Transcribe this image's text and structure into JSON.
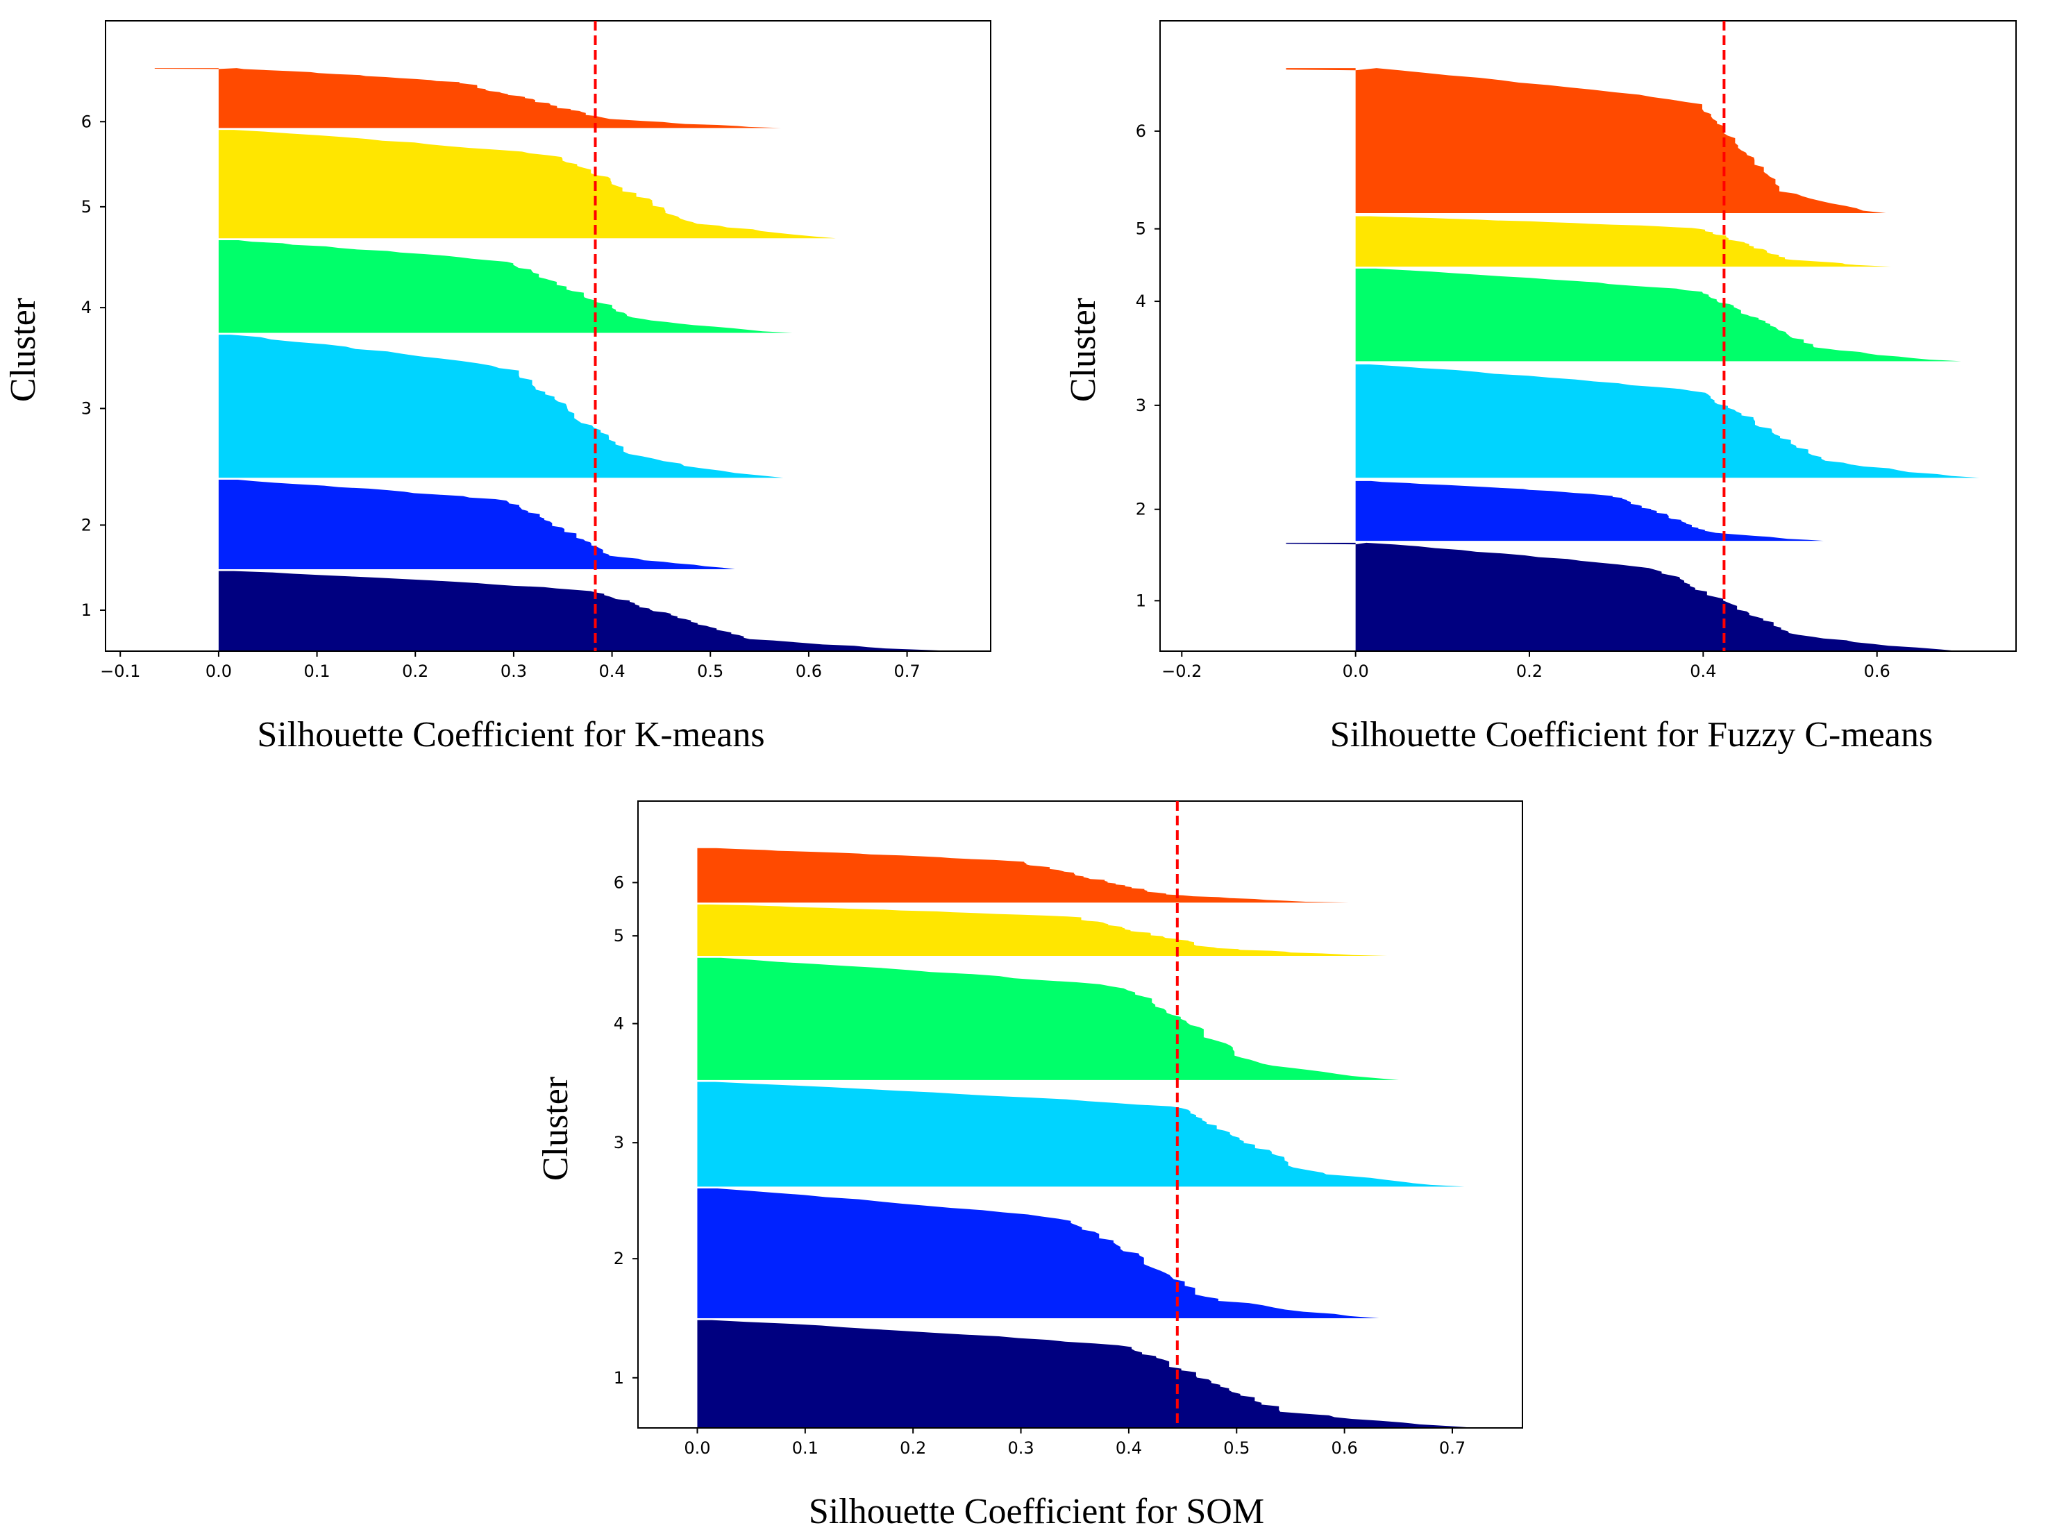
{
  "chart_data": [
    {
      "type": "silhouette",
      "xlabel": "Silhouette Coefficient for K-means",
      "ylabel": "Cluster",
      "xlim": [
        -0.115,
        0.785
      ],
      "xticks": [
        -0.1,
        0.0,
        0.1,
        0.2,
        0.3,
        0.4,
        0.5,
        0.6,
        0.7
      ],
      "xtick_labels": [
        "−0.1",
        "0.0",
        "0.1",
        "0.2",
        "0.3",
        "0.4",
        "0.5",
        "0.6",
        "0.7"
      ],
      "average_silhouette": 0.383,
      "clusters": [
        {
          "label": "1",
          "color": "#000080",
          "start": 0.0,
          "end": 0.127,
          "max": 0.745,
          "min": 0.0,
          "median": 0.38
        },
        {
          "label": "2",
          "color": "#0022ff",
          "start": 0.13,
          "end": 0.272,
          "max": 0.53,
          "min": 0.0,
          "median": 0.3
        },
        {
          "label": "3",
          "color": "#00d4ff",
          "start": 0.275,
          "end": 0.502,
          "max": 0.575,
          "min": 0.0,
          "median": 0.3
        },
        {
          "label": "4",
          "color": "#00ff6a",
          "start": 0.505,
          "end": 0.652,
          "max": 0.58,
          "min": 0.0,
          "median": 0.3
        },
        {
          "label": "5",
          "color": "#ffe600",
          "start": 0.655,
          "end": 0.827,
          "max": 0.635,
          "min": 0.0,
          "median": 0.35
        },
        {
          "label": "6",
          "color": "#ff4a00",
          "start": 0.83,
          "end": 0.925,
          "max": 0.575,
          "min": -0.065,
          "median": 0.25
        }
      ],
      "cluster_tick_positions": [
        0.065,
        0.2,
        0.385,
        0.545,
        0.705,
        0.84
      ]
    },
    {
      "type": "silhouette",
      "xlabel": "Silhouette Coefficient for Fuzzy C-means",
      "ylabel": "Cluster",
      "xlim": [
        -0.225,
        0.76
      ],
      "xticks": [
        -0.2,
        0.0,
        0.2,
        0.4,
        0.6
      ],
      "xtick_labels": [
        "−0.2",
        "0.0",
        "0.2",
        "0.4",
        "0.6"
      ],
      "average_silhouette": 0.424,
      "clusters": [
        {
          "label": "1",
          "color": "#000080",
          "start": 0.0,
          "end": 0.172,
          "max": 0.7,
          "min": -0.08,
          "median": 0.35
        },
        {
          "label": "2",
          "color": "#0022ff",
          "start": 0.175,
          "end": 0.27,
          "max": 0.54,
          "min": 0.0,
          "median": 0.3
        },
        {
          "label": "3",
          "color": "#00d4ff",
          "start": 0.275,
          "end": 0.455,
          "max": 0.715,
          "min": 0.0,
          "median": 0.4
        },
        {
          "label": "4",
          "color": "#00ff6a",
          "start": 0.46,
          "end": 0.607,
          "max": 0.69,
          "min": 0.0,
          "median": 0.4
        },
        {
          "label": "5",
          "color": "#ffe600",
          "start": 0.61,
          "end": 0.69,
          "max": 0.62,
          "min": 0.0,
          "median": 0.4
        },
        {
          "label": "6",
          "color": "#ff4a00",
          "start": 0.695,
          "end": 0.925,
          "max": 0.61,
          "min": -0.08,
          "median": 0.4
        }
      ],
      "cluster_tick_positions": [
        0.08,
        0.225,
        0.39,
        0.555,
        0.67,
        0.825
      ]
    },
    {
      "type": "silhouette",
      "xlabel": "Silhouette Coefficient for SOM",
      "ylabel": "Cluster",
      "xlim": [
        -0.055,
        0.765
      ],
      "xticks": [
        0.0,
        0.1,
        0.2,
        0.3,
        0.4,
        0.5,
        0.6,
        0.7
      ],
      "xtick_labels": [
        "0.0",
        "0.1",
        "0.2",
        "0.3",
        "0.4",
        "0.5",
        "0.6",
        "0.7"
      ],
      "average_silhouette": 0.445,
      "clusters": [
        {
          "label": "1",
          "color": "#000080",
          "start": 0.0,
          "end": 0.172,
          "max": 0.725,
          "min": 0.0,
          "median": 0.4
        },
        {
          "label": "2",
          "color": "#0022ff",
          "start": 0.175,
          "end": 0.382,
          "max": 0.63,
          "min": 0.0,
          "median": 0.35
        },
        {
          "label": "3",
          "color": "#00d4ff",
          "start": 0.385,
          "end": 0.552,
          "max": 0.705,
          "min": 0.0,
          "median": 0.45
        },
        {
          "label": "4",
          "color": "#00ff6a",
          "start": 0.555,
          "end": 0.75,
          "max": 0.655,
          "min": 0.0,
          "median": 0.4
        },
        {
          "label": "5",
          "color": "#ffe600",
          "start": 0.753,
          "end": 0.835,
          "max": 0.64,
          "min": 0.0,
          "median": 0.35
        },
        {
          "label": "6",
          "color": "#ff4a00",
          "start": 0.838,
          "end": 0.925,
          "max": 0.6,
          "min": 0.0,
          "median": 0.3
        }
      ],
      "cluster_tick_positions": [
        0.08,
        0.27,
        0.455,
        0.645,
        0.785,
        0.87
      ]
    }
  ]
}
